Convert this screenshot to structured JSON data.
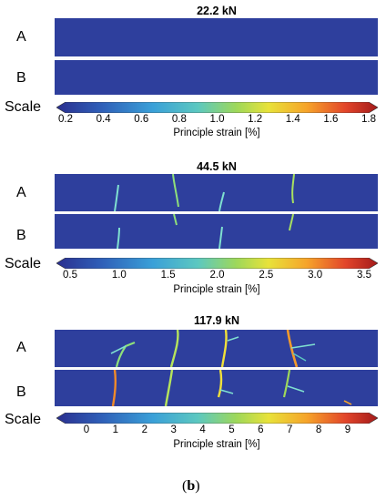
{
  "panels": [
    {
      "title": "22.2 kN",
      "row_labels": [
        "A",
        "B"
      ],
      "scale_label": "Scale",
      "colorbar": {
        "ticks": [
          "0.2",
          "0.4",
          "0.6",
          "0.8",
          "1.0",
          "1.2",
          "1.4",
          "1.6",
          "1.8"
        ],
        "label": "Principle strain [%]"
      }
    },
    {
      "title": "44.5 kN",
      "row_labels": [
        "A",
        "B"
      ],
      "scale_label": "Scale",
      "colorbar": {
        "ticks": [
          "0.5",
          "1.0",
          "1.5",
          "2.0",
          "2.5",
          "3.0",
          "3.5"
        ],
        "label": "Principle strain [%]"
      }
    },
    {
      "title": "117.9 kN",
      "row_labels": [
        "A",
        "B"
      ],
      "scale_label": "Scale",
      "colorbar": {
        "ticks": [
          "0",
          "1",
          "2",
          "3",
          "4",
          "5",
          "6",
          "7",
          "8",
          "9"
        ],
        "label": "Principle strain [%]"
      }
    }
  ],
  "caption": {
    "open": "(",
    "letter": "b",
    "close": ")"
  },
  "colors": {
    "background_strain": "#2e3f9d",
    "colormap": [
      "#2a2f8f",
      "#2f5fb8",
      "#3aa0d8",
      "#5cc8c0",
      "#9ed85a",
      "#e8e23a",
      "#f6a32a",
      "#e2452a",
      "#a31a1a"
    ]
  }
}
